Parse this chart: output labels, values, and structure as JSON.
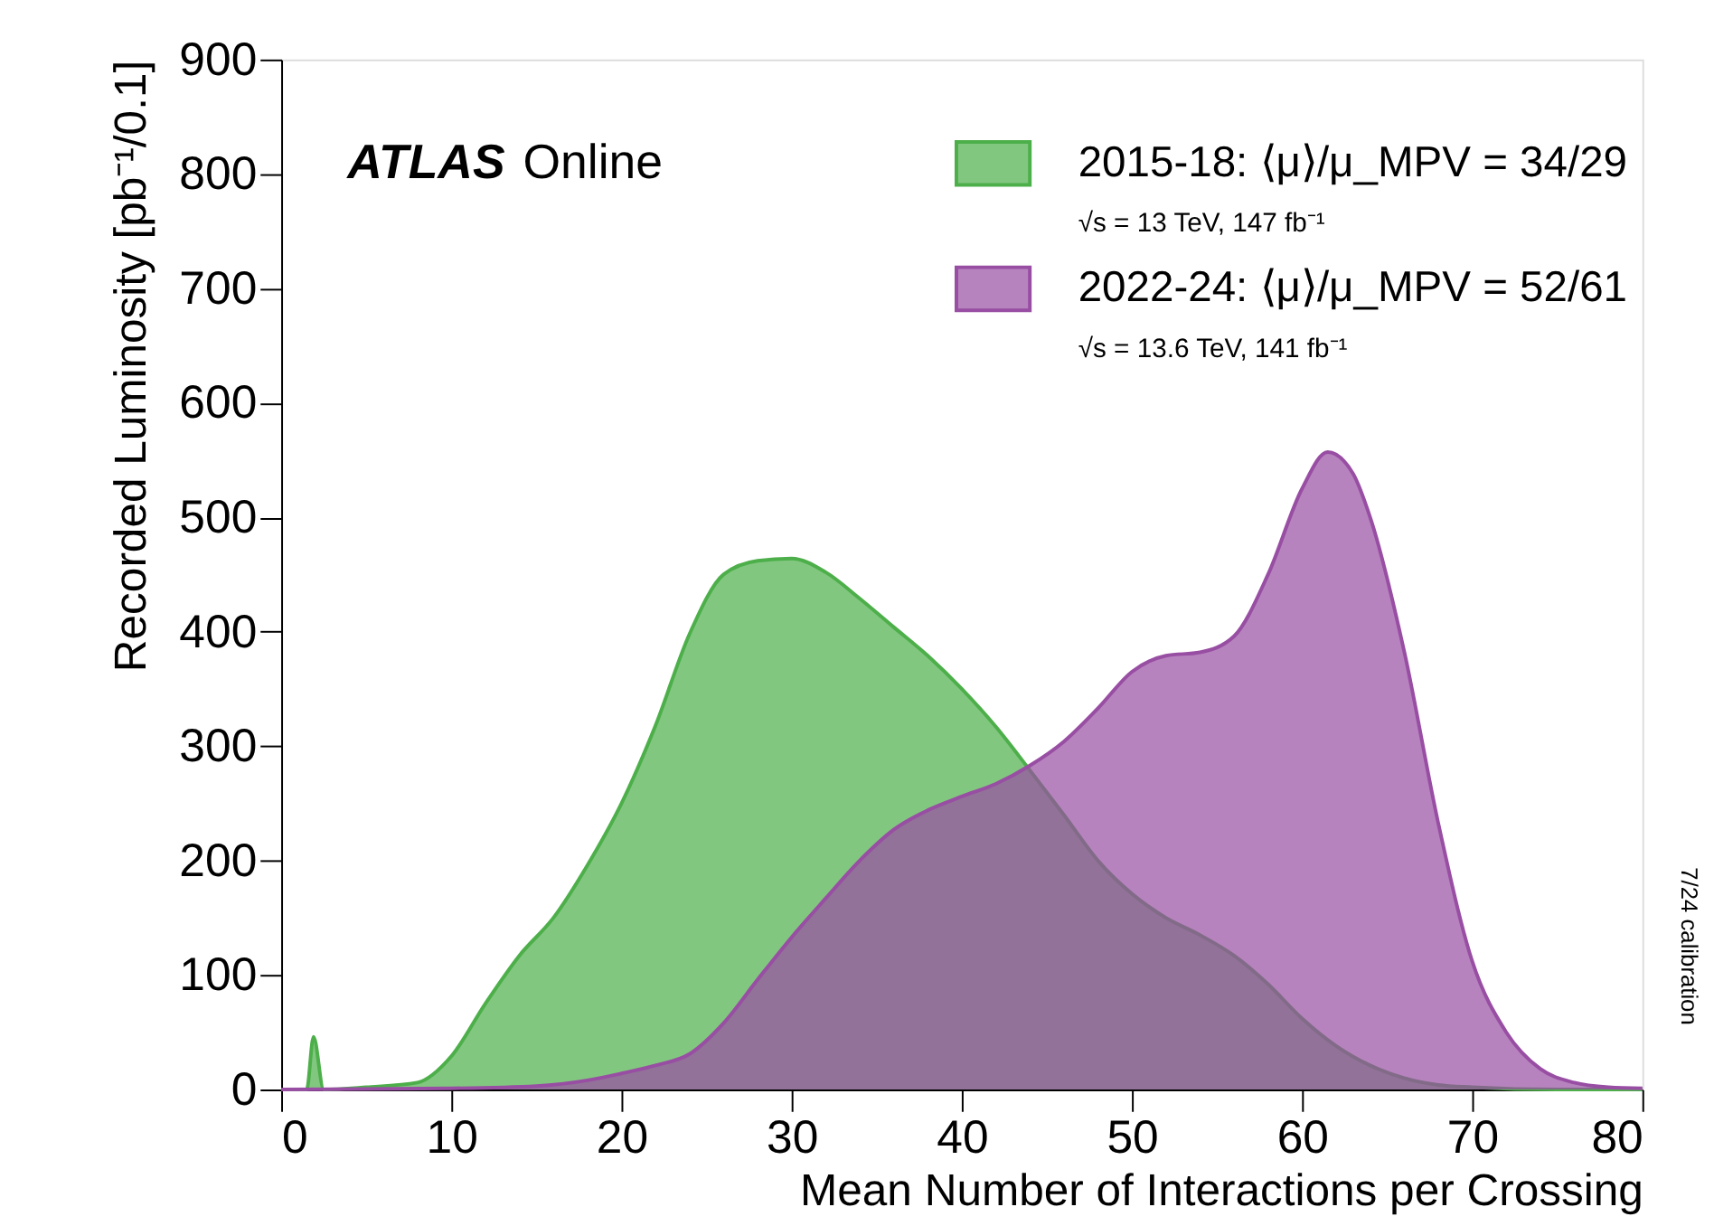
{
  "chart_data": {
    "type": "area",
    "title": "ATLAS",
    "subtitle": "Online",
    "xlabel": "Mean Number of Interactions per Crossing",
    "ylabel": "Recorded Luminosity [pb⁻¹/0.1]",
    "xlim": [
      0,
      80
    ],
    "xticks": [
      0,
      10,
      20,
      30,
      40,
      50,
      60,
      70,
      80
    ],
    "ylim": [
      0,
      900
    ],
    "yticks": [
      0,
      100,
      200,
      300,
      400,
      500,
      600,
      700,
      800,
      900
    ],
    "grid": false,
    "legend": "top right",
    "annotations": [
      "√s = 13 TeV, 147 fb⁻¹",
      "√s = 13.6 TeV, 141 fb⁻¹",
      "7/24 calibration"
    ],
    "series": [
      {
        "name": "2015-18: ⟨μ⟩/μ_MPV = 34/29",
        "color": "#4daf4a",
        "x": [
          0,
          1.5,
          1.9,
          2.5,
          5,
          8,
          10,
          12,
          14,
          16,
          18,
          20,
          22,
          24,
          26,
          28,
          30,
          32,
          34,
          36,
          38,
          40,
          42,
          44,
          46,
          48,
          50,
          52,
          54,
          56,
          58,
          60,
          62,
          64,
          66,
          68,
          70,
          75,
          80
        ],
        "values": [
          0,
          0,
          46,
          0,
          2,
          6,
          29,
          75,
          117,
          150,
          196,
          250,
          318,
          398,
          450,
          462,
          464,
          452,
          429,
          404,
          379,
          350,
          317,
          279,
          240,
          200,
          171,
          150,
          135,
          117,
          92,
          62,
          38,
          21,
          10,
          4,
          2,
          0,
          0
        ]
      },
      {
        "name": "2022-24: ⟨μ⟩/μ_MPV = 52/61",
        "color": "#984ea3",
        "x": [
          0,
          10,
          15,
          18,
          20,
          22,
          24,
          26,
          28,
          30,
          32,
          34,
          36,
          38,
          40,
          42,
          44,
          46,
          48,
          50,
          52,
          54,
          56,
          58,
          60,
          61.5,
          63,
          64,
          66,
          68,
          70,
          72,
          74,
          76,
          78,
          80
        ],
        "values": [
          0,
          1,
          3,
          8,
          14,
          21,
          31,
          58,
          96,
          133,
          167,
          200,
          227,
          244,
          256,
          267,
          283,
          304,
          333,
          365,
          379,
          382,
          396,
          450,
          525,
          557,
          538,
          500,
          383,
          233,
          112,
          50,
          18,
          6,
          2,
          1
        ]
      }
    ]
  }
}
